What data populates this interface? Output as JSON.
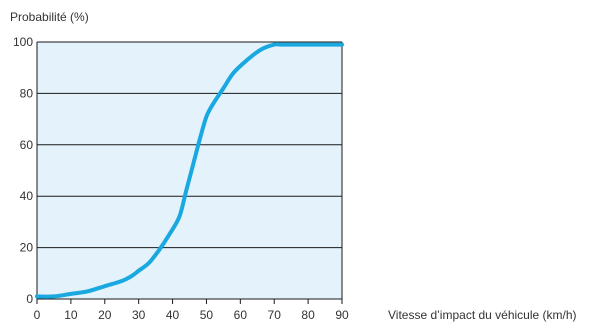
{
  "chart_data": {
    "type": "line",
    "xlabel": "Vitesse d’impact du véhicule (km/h)",
    "ylabel": "Probabilité (%)",
    "xlim": [
      0,
      90
    ],
    "ylim": [
      0,
      100
    ],
    "x_ticks": [
      0,
      10,
      20,
      30,
      40,
      50,
      60,
      70,
      80,
      90
    ],
    "y_ticks": [
      0,
      20,
      40,
      60,
      80,
      100
    ],
    "grid": "horizontal",
    "series": [
      {
        "x": [
          0,
          5,
          10,
          15,
          20,
          25,
          28,
          30,
          33,
          36,
          39,
          42,
          44,
          46,
          48,
          50,
          52,
          55,
          58,
          62,
          66,
          70,
          72,
          75,
          80,
          85,
          90
        ],
        "y": [
          1,
          1,
          2,
          3,
          5,
          7,
          9,
          11,
          14,
          19,
          25,
          32,
          42,
          52,
          62,
          71,
          76,
          82,
          88,
          93,
          97,
          99,
          99,
          99,
          99,
          99,
          99
        ]
      }
    ],
    "colors": {
      "line": "#19a8df",
      "plot_bg": "#e3f2fb",
      "grid": "#1a1a1a"
    }
  }
}
